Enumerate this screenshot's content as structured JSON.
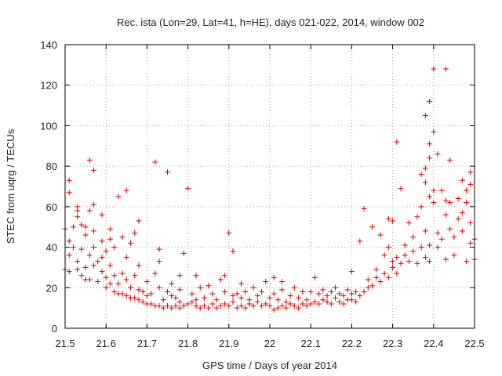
{
  "chart_data": {
    "type": "scatter",
    "title": "Rec. ista (Lon=29, Lat=41, h=HE), days 021-022, 2014, window 002",
    "xlabel": "GPS time / Days of year 2014",
    "ylabel": "STEC from uqrg / TECUs",
    "xlim": [
      21.5,
      22.5
    ],
    "ylim": [
      0,
      140
    ],
    "x_ticks": [
      21.5,
      21.6,
      21.7,
      21.8,
      21.9,
      22.0,
      22.1,
      22.2,
      22.3,
      22.4,
      22.5
    ],
    "x_tick_labels": [
      "21.5",
      "21.6",
      "21.7",
      "21.8",
      "21.9",
      "22",
      "22.1",
      "22.2",
      "22.3",
      "22.4",
      "22.5"
    ],
    "y_ticks": [
      0,
      20,
      40,
      60,
      80,
      100,
      120,
      140
    ],
    "y_tick_labels": [
      "0",
      "20",
      "40",
      "60",
      "80",
      "100",
      "120",
      "140"
    ],
    "grid": true,
    "marker": "+",
    "series": [
      {
        "name": "STEC",
        "color": "#dd0000",
        "points": [
          [
            21.5,
            29
          ],
          [
            21.5,
            49
          ],
          [
            21.51,
            28
          ],
          [
            21.51,
            36
          ],
          [
            21.51,
            43
          ],
          [
            21.51,
            67
          ],
          [
            21.51,
            73
          ],
          [
            21.52,
            50
          ],
          [
            21.52,
            40
          ],
          [
            21.53,
            29
          ],
          [
            21.53,
            33
          ],
          [
            21.53,
            55
          ],
          [
            21.53,
            58
          ],
          [
            21.53,
            60
          ],
          [
            21.54,
            26
          ],
          [
            21.54,
            39
          ],
          [
            21.54,
            51
          ],
          [
            21.55,
            24
          ],
          [
            21.55,
            30
          ],
          [
            21.55,
            46
          ],
          [
            21.55,
            50
          ],
          [
            21.56,
            58
          ],
          [
            21.56,
            83
          ],
          [
            21.56,
            24
          ],
          [
            21.56,
            36
          ],
          [
            21.57,
            31
          ],
          [
            21.57,
            40
          ],
          [
            21.57,
            48
          ],
          [
            21.57,
            61
          ],
          [
            21.57,
            78
          ],
          [
            21.58,
            23
          ],
          [
            21.58,
            33
          ],
          [
            21.59,
            43
          ],
          [
            21.59,
            56
          ],
          [
            21.59,
            28
          ],
          [
            21.59,
            35
          ],
          [
            21.6,
            38
          ],
          [
            21.6,
            20
          ],
          [
            21.6,
            25
          ],
          [
            21.61,
            22
          ],
          [
            21.61,
            31
          ],
          [
            21.61,
            44
          ],
          [
            21.61,
            49
          ],
          [
            21.62,
            18
          ],
          [
            21.62,
            26
          ],
          [
            21.62,
            40
          ],
          [
            21.63,
            17
          ],
          [
            21.63,
            22
          ],
          [
            21.63,
            65
          ],
          [
            21.64,
            17
          ],
          [
            21.64,
            27
          ],
          [
            21.64,
            45
          ],
          [
            21.65,
            16
          ],
          [
            21.65,
            24
          ],
          [
            21.65,
            35
          ],
          [
            21.65,
            68
          ],
          [
            21.66,
            15
          ],
          [
            21.66,
            20
          ],
          [
            21.66,
            42
          ],
          [
            21.67,
            15
          ],
          [
            21.67,
            26
          ],
          [
            21.67,
            47
          ],
          [
            21.68,
            14
          ],
          [
            21.68,
            19
          ],
          [
            21.68,
            31
          ],
          [
            21.68,
            53
          ],
          [
            21.69,
            13
          ],
          [
            21.69,
            18
          ],
          [
            21.7,
            12
          ],
          [
            21.7,
            16
          ],
          [
            21.7,
            23
          ],
          [
            21.71,
            12
          ],
          [
            21.71,
            17
          ],
          [
            21.72,
            11
          ],
          [
            21.72,
            27
          ],
          [
            21.72,
            82
          ],
          [
            21.73,
            11
          ],
          [
            21.73,
            20
          ],
          [
            21.73,
            33
          ],
          [
            21.73,
            39
          ],
          [
            21.74,
            10
          ],
          [
            21.74,
            14
          ],
          [
            21.75,
            11
          ],
          [
            21.75,
            18
          ],
          [
            21.75,
            77
          ],
          [
            21.76,
            10
          ],
          [
            21.76,
            16
          ],
          [
            21.76,
            22
          ],
          [
            21.77,
            11
          ],
          [
            21.77,
            15
          ],
          [
            21.78,
            10
          ],
          [
            21.78,
            13
          ],
          [
            21.78,
            19
          ],
          [
            21.78,
            26
          ],
          [
            21.79,
            11
          ],
          [
            21.79,
            37
          ],
          [
            21.8,
            12
          ],
          [
            21.8,
            69
          ],
          [
            21.81,
            13
          ],
          [
            21.81,
            17
          ],
          [
            21.82,
            11
          ],
          [
            21.82,
            14
          ],
          [
            21.82,
            26
          ],
          [
            21.83,
            10
          ],
          [
            21.83,
            20
          ],
          [
            21.84,
            11
          ],
          [
            21.84,
            15
          ],
          [
            21.85,
            10
          ],
          [
            21.85,
            21
          ],
          [
            21.86,
            12
          ],
          [
            21.86,
            17
          ],
          [
            21.87,
            10
          ],
          [
            21.87,
            14
          ],
          [
            21.88,
            11
          ],
          [
            21.88,
            24
          ],
          [
            21.89,
            12
          ],
          [
            21.89,
            18
          ],
          [
            21.89,
            26
          ],
          [
            21.9,
            11
          ],
          [
            21.9,
            47
          ],
          [
            21.91,
            13
          ],
          [
            21.91,
            16
          ],
          [
            21.91,
            38
          ],
          [
            21.92,
            10
          ],
          [
            21.92,
            17
          ],
          [
            21.93,
            11
          ],
          [
            21.93,
            15
          ],
          [
            21.93,
            22
          ],
          [
            21.94,
            10
          ],
          [
            21.94,
            18
          ],
          [
            21.95,
            12
          ],
          [
            21.95,
            14
          ],
          [
            21.96,
            11
          ],
          [
            21.96,
            20
          ],
          [
            21.97,
            13
          ],
          [
            21.97,
            16
          ],
          [
            21.98,
            11
          ],
          [
            21.98,
            18
          ],
          [
            21.99,
            12
          ],
          [
            21.99,
            23
          ],
          [
            22.0,
            11
          ],
          [
            22.0,
            15
          ],
          [
            22.01,
            9
          ],
          [
            22.01,
            17
          ],
          [
            22.01,
            25
          ],
          [
            22.02,
            10
          ],
          [
            22.02,
            14
          ],
          [
            22.03,
            11
          ],
          [
            22.03,
            19
          ],
          [
            22.03,
            23
          ],
          [
            22.04,
            10
          ],
          [
            22.04,
            13
          ],
          [
            22.05,
            12
          ],
          [
            22.05,
            16
          ],
          [
            22.06,
            11
          ],
          [
            22.06,
            20
          ],
          [
            22.07,
            10
          ],
          [
            22.07,
            15
          ],
          [
            22.08,
            12
          ],
          [
            22.08,
            18
          ],
          [
            22.09,
            11
          ],
          [
            22.09,
            14
          ],
          [
            22.1,
            12
          ],
          [
            22.1,
            18
          ],
          [
            22.11,
            13
          ],
          [
            22.11,
            25
          ],
          [
            22.12,
            12
          ],
          [
            22.12,
            17
          ],
          [
            22.13,
            14
          ],
          [
            22.13,
            19
          ],
          [
            22.14,
            13
          ],
          [
            22.14,
            16
          ],
          [
            22.15,
            12
          ],
          [
            22.15,
            18
          ],
          [
            22.16,
            15
          ],
          [
            22.16,
            20
          ],
          [
            22.17,
            13
          ],
          [
            22.17,
            17
          ],
          [
            22.18,
            12
          ],
          [
            22.18,
            16
          ],
          [
            22.19,
            14
          ],
          [
            22.19,
            19
          ],
          [
            22.2,
            14
          ],
          [
            22.2,
            17
          ],
          [
            22.2,
            28
          ],
          [
            22.21,
            13
          ],
          [
            22.21,
            18
          ],
          [
            22.22,
            43
          ],
          [
            22.22,
            16
          ],
          [
            22.23,
            18
          ],
          [
            22.23,
            59
          ],
          [
            22.24,
            20
          ],
          [
            22.24,
            24
          ],
          [
            22.25,
            21
          ],
          [
            22.25,
            50
          ],
          [
            22.26,
            25
          ],
          [
            22.26,
            29
          ],
          [
            22.27,
            23
          ],
          [
            22.27,
            46
          ],
          [
            22.28,
            27
          ],
          [
            22.28,
            36
          ],
          [
            22.29,
            40
          ],
          [
            22.29,
            54
          ],
          [
            22.29,
            25
          ],
          [
            22.3,
            30
          ],
          [
            22.3,
            33
          ],
          [
            22.3,
            53
          ],
          [
            22.31,
            92
          ],
          [
            22.31,
            27
          ],
          [
            22.31,
            35
          ],
          [
            22.32,
            69
          ],
          [
            22.32,
            32
          ],
          [
            22.33,
            36
          ],
          [
            22.33,
            41
          ],
          [
            22.34,
            33
          ],
          [
            22.34,
            52
          ],
          [
            22.35,
            38
          ],
          [
            22.35,
            45
          ],
          [
            22.36,
            55
          ],
          [
            22.36,
            32
          ],
          [
            22.37,
            40
          ],
          [
            22.37,
            60
          ],
          [
            22.37,
            76
          ],
          [
            22.38,
            35
          ],
          [
            22.38,
            48
          ],
          [
            22.38,
            72
          ],
          [
            22.38,
            79
          ],
          [
            22.38,
            105
          ],
          [
            22.39,
            33
          ],
          [
            22.39,
            41
          ],
          [
            22.39,
            65
          ],
          [
            22.39,
            84
          ],
          [
            22.39,
            91
          ],
          [
            22.39,
            112
          ],
          [
            22.4,
            62
          ],
          [
            22.4,
            68
          ],
          [
            22.4,
            128
          ],
          [
            22.4,
            97
          ],
          [
            22.41,
            47
          ],
          [
            22.41,
            40
          ],
          [
            22.41,
            86
          ],
          [
            22.42,
            44
          ],
          [
            22.42,
            68
          ],
          [
            22.43,
            128
          ],
          [
            22.43,
            34
          ],
          [
            22.43,
            56
          ],
          [
            22.43,
            63
          ],
          [
            22.44,
            49
          ],
          [
            22.44,
            62
          ],
          [
            22.44,
            83
          ],
          [
            22.45,
            45
          ],
          [
            22.45,
            36
          ],
          [
            22.46,
            64
          ],
          [
            22.46,
            54
          ],
          [
            22.47,
            57
          ],
          [
            22.47,
            48
          ],
          [
            22.47,
            73
          ],
          [
            22.48,
            33
          ],
          [
            22.48,
            68
          ],
          [
            22.48,
            62
          ],
          [
            22.49,
            71
          ],
          [
            22.49,
            42
          ],
          [
            22.49,
            52
          ],
          [
            22.49,
            77
          ],
          [
            22.5,
            34
          ],
          [
            22.5,
            44
          ]
        ]
      }
    ]
  }
}
